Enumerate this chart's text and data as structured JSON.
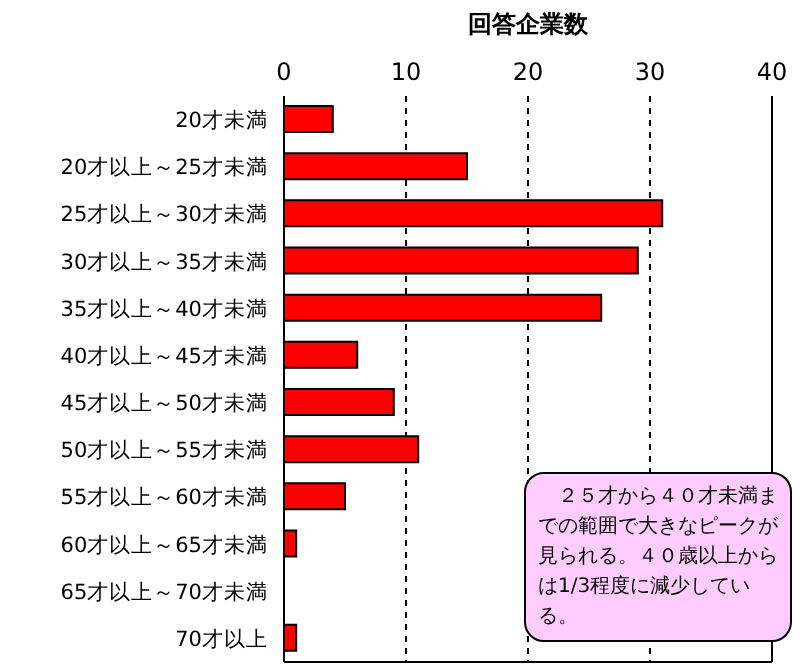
{
  "chart_data": {
    "type": "bar",
    "orientation": "horizontal",
    "title": "回答企業数",
    "categories": [
      "20才未満",
      "20才以上～25才未満",
      "25才以上～30才未満",
      "30才以上～35才未満",
      "35才以上～40才未満",
      "40才以上～45才未満",
      "45才以上～50才未満",
      "50才以上～55才未満",
      "55才以上～60才未満",
      "60才以上～65才未満",
      "65才以上～70才未満",
      "70才以上"
    ],
    "values": [
      4,
      15,
      31,
      29,
      26,
      6,
      9,
      11,
      5,
      1,
      0,
      1
    ],
    "color": "#ff0000",
    "xlim": [
      0,
      40
    ],
    "xticks": [
      0,
      10,
      20,
      30,
      40
    ],
    "grid": "x",
    "annotations": [
      "　２５才から４０才未満までの範囲で大きなピークが見られる。４０歳以上からは1/3程度に減少している。"
    ]
  }
}
